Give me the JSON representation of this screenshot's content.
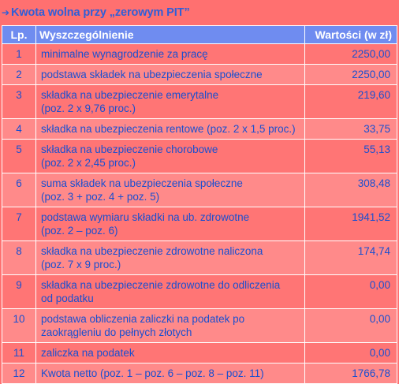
{
  "title": {
    "arrow": "➔",
    "text": "Kwota wolna przy „zerowym PIT”"
  },
  "header": {
    "lp": "Lp.",
    "desc": "Wyszczególnienie",
    "val": "Wartości (w zł)"
  },
  "rows": [
    {
      "lp": "1",
      "line1": "minimalne wynagrodzenie za pracę",
      "line2": "",
      "val": "2250,00"
    },
    {
      "lp": "2",
      "line1": "podstawa składek na ubezpieczenia społeczne",
      "line2": "",
      "val": "2250,00"
    },
    {
      "lp": "3",
      "line1": "składka na ubezpieczenie emerytalne",
      "line2": "(poz. 2 x 9,76 proc.)",
      "val": "219,60"
    },
    {
      "lp": "4",
      "line1": "składka na ubezpieczenia rentowe  (poz. 2 x 1,5 proc.)",
      "line2": "",
      "val": "33,75"
    },
    {
      "lp": "5",
      "line1": "składka na ubezpieczenie chorobowe",
      "line2": "(poz. 2 x 2,45 proc.)",
      "val": "55,13"
    },
    {
      "lp": "6",
      "line1": "suma składek na ubezpieczenia społeczne",
      "line2": "(poz. 3 + poz. 4 + poz. 5)",
      "val": "308,48"
    },
    {
      "lp": "7",
      "line1": "podstawa wymiaru składki na ub. zdrowotne",
      "line2": "(poz. 2 – poz. 6)",
      "val": "1941,52"
    },
    {
      "lp": "8",
      "line1": "składka na ubezpieczenie zdrowotne naliczona",
      "line2": "(poz. 7 x 9 proc.)",
      "val": "174,74"
    },
    {
      "lp": "9",
      "line1": "składka na ubezpieczenie zdrowotne do odliczenia",
      "line2": "od podatku",
      "val": "0,00"
    },
    {
      "lp": "10",
      "line1": "podstawa obliczenia zaliczki na podatek po",
      "line2": "zaokrągleniu do pełnych złotych",
      "val": "0,00"
    },
    {
      "lp": "11",
      "line1": "zaliczka na podatek",
      "line2": "",
      "val": "0,00"
    },
    {
      "lp": "12",
      "line1": "Kwota netto (poz. 1 – poz. 6 – poz. 8 – poz. 11)",
      "line2": "",
      "val": "1766,78"
    }
  ]
}
